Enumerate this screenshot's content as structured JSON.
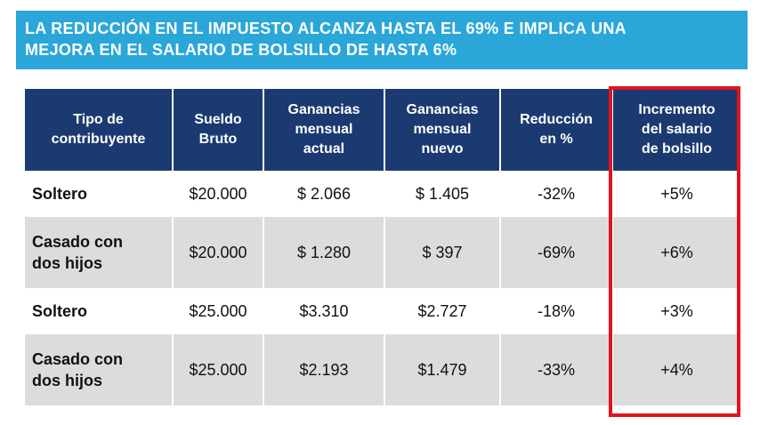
{
  "banner": {
    "line1": "LA REDUCCIÓN EN EL IMPUESTO ALCANZA HASTA EL 69% E IMPLICA UNA",
    "line2": "MEJORA EN EL SALARIO DE BOLSILLO DE HASTA 6%"
  },
  "table": {
    "headers": [
      [
        "Tipo de",
        "contribuyente"
      ],
      [
        "Sueldo",
        "Bruto"
      ],
      [
        "Ganancias",
        "mensual",
        "actual"
      ],
      [
        "Ganancias",
        "mensual",
        "nuevo"
      ],
      [
        "Reducción",
        "en %"
      ],
      [
        "Incremento",
        "del salario",
        "de bolsillo"
      ]
    ],
    "rows": [
      {
        "tipo": [
          "Soltero"
        ],
        "sueldo": "$20.000",
        "actual": "$ 2.066",
        "nuevo": "$ 1.405",
        "reduccion": "-32%",
        "incremento": "+5%"
      },
      {
        "tipo": [
          "Casado con",
          "dos hijos"
        ],
        "sueldo": "$20.000",
        "actual": "$ 1.280",
        "nuevo": "$ 397",
        "reduccion": "-69%",
        "incremento": "+6%"
      },
      {
        "tipo": [
          "Soltero"
        ],
        "sueldo": "$25.000",
        "actual": "$3.310",
        "nuevo": "$2.727",
        "reduccion": "-18%",
        "incremento": "+3%"
      },
      {
        "tipo": [
          "Casado con",
          "dos hijos"
        ],
        "sueldo": "$25.000",
        "actual": "$2.193",
        "nuevo": "$1.479",
        "reduccion": "-33%",
        "incremento": "+4%"
      }
    ]
  },
  "colors": {
    "banner": "#2aa7d8",
    "header": "#1b3a71",
    "alt_row": "#dcdcdc",
    "highlight": "#e0141e"
  }
}
